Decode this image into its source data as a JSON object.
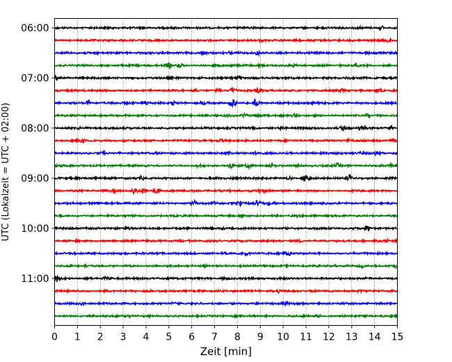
{
  "chart_data": {
    "type": "line",
    "title": "",
    "xlabel": "Zeit  [min]",
    "ylabel": "UTC (Lokalzeit = UTC + 02:00)",
    "xlim": [
      0,
      15
    ],
    "xticks": [
      0,
      1,
      2,
      3,
      4,
      5,
      6,
      7,
      8,
      9,
      10,
      11,
      12,
      13,
      14,
      15
    ],
    "row_interval_minutes": 15,
    "start_time": "06:00",
    "ytick_labels": [
      "06:00",
      "07:00",
      "08:00",
      "09:00",
      "10:00",
      "11:00"
    ],
    "grid": "x",
    "trace_colors": [
      "#000000",
      "#ff0000",
      "#0000ff",
      "#008000"
    ],
    "rows": [
      {
        "time": "06:00",
        "events": [
          [
            8.8,
            0.4
          ],
          [
            12.2,
            0.5
          ],
          [
            13.3,
            0.4
          ],
          [
            14.3,
            0.6
          ]
        ]
      },
      {
        "time": "06:15",
        "events": [
          [
            9.0,
            0.4
          ],
          [
            14.6,
            0.8
          ]
        ]
      },
      {
        "time": "06:30",
        "events": [
          [
            1.8,
            0.6
          ],
          [
            4.2,
            0.4
          ],
          [
            6.5,
            0.7
          ],
          [
            7.7,
            0.5
          ],
          [
            8.9,
            0.8
          ],
          [
            13.7,
            0.4
          ]
        ]
      },
      {
        "time": "06:45",
        "events": [
          [
            5.0,
            1.0
          ],
          [
            5.5,
            0.7
          ],
          [
            9.0,
            0.6
          ],
          [
            10.5,
            0.5
          ],
          [
            13.2,
            0.4
          ]
        ]
      },
      {
        "time": "07:00",
        "events": [
          [
            0.1,
            1.0
          ],
          [
            7.9,
            0.4
          ],
          [
            8.1,
            0.5
          ],
          [
            12.8,
            0.4
          ]
        ]
      },
      {
        "time": "07:15",
        "events": [
          [
            6.2,
            0.7
          ],
          [
            7.2,
            0.8
          ],
          [
            7.8,
            1.2
          ],
          [
            8.9,
            1.0
          ],
          [
            12.5,
            0.4
          ],
          [
            14.2,
            0.9
          ]
        ]
      },
      {
        "time": "07:30",
        "events": [
          [
            1.5,
            0.9
          ],
          [
            3.2,
            0.4
          ],
          [
            4.0,
            0.8
          ],
          [
            5.2,
            0.8
          ],
          [
            6.5,
            0.7
          ],
          [
            7.8,
            1.8
          ],
          [
            8.8,
            2.2
          ]
        ]
      },
      {
        "time": "07:45",
        "events": [
          [
            7.6,
            0.6
          ],
          [
            8.3,
            0.7
          ],
          [
            8.9,
            0.6
          ],
          [
            10.5,
            0.4
          ],
          [
            13.7,
            0.5
          ]
        ]
      },
      {
        "time": "08:00",
        "events": [
          [
            1.0,
            0.5
          ],
          [
            9.9,
            0.4
          ],
          [
            12.6,
            1.0
          ],
          [
            13.5,
            0.9
          ],
          [
            14.7,
            0.8
          ]
        ]
      },
      {
        "time": "08:15",
        "events": [
          [
            1.2,
            1.0
          ],
          [
            1.8,
            0.6
          ],
          [
            7.3,
            0.5
          ],
          [
            12.9,
            0.5
          ],
          [
            14.8,
            0.7
          ]
        ]
      },
      {
        "time": "08:30",
        "events": [
          [
            2.1,
            0.5
          ],
          [
            7.6,
            0.5
          ],
          [
            8.9,
            0.6
          ],
          [
            13.4,
            0.4
          ],
          [
            14.1,
            0.7
          ]
        ]
      },
      {
        "time": "08:45",
        "events": [
          [
            6.3,
            0.7
          ],
          [
            7.7,
            1.1
          ],
          [
            8.5,
            1.0
          ],
          [
            9.5,
            0.9
          ],
          [
            10.6,
            0.6
          ],
          [
            12.4,
            0.8
          ],
          [
            14.7,
            0.5
          ]
        ]
      },
      {
        "time": "09:00",
        "events": [
          [
            3.8,
            0.6
          ],
          [
            8.9,
            0.4
          ],
          [
            10.3,
            0.5
          ],
          [
            11.0,
            2.0
          ],
          [
            12.9,
            1.4
          ]
        ]
      },
      {
        "time": "09:15",
        "events": [
          [
            2.6,
            0.8
          ],
          [
            3.5,
            1.5
          ],
          [
            3.9,
            1.3
          ],
          [
            4.5,
            1.1
          ],
          [
            9.1,
            0.9
          ]
        ]
      },
      {
        "time": "09:30",
        "events": [
          [
            6.1,
            1.0
          ],
          [
            7.0,
            0.5
          ],
          [
            8.1,
            0.8
          ],
          [
            8.9,
            1.3
          ],
          [
            9.4,
            0.5
          ]
        ]
      },
      {
        "time": "09:45",
        "events": [
          [
            8.2,
            0.4
          ],
          [
            10.6,
            0.3
          ]
        ]
      },
      {
        "time": "10:00",
        "events": [
          [
            3.2,
            0.4
          ],
          [
            7.4,
            0.3
          ],
          [
            13.7,
            1.3
          ]
        ]
      },
      {
        "time": "10:15",
        "events": [
          [
            5.9,
            0.3
          ],
          [
            10.8,
            0.3
          ],
          [
            14.5,
            0.5
          ]
        ]
      },
      {
        "time": "10:30",
        "events": [
          [
            3.9,
            0.3
          ],
          [
            8.4,
            0.5
          ],
          [
            10.2,
            0.6
          ]
        ]
      },
      {
        "time": "10:45",
        "events": [
          [
            6.6,
            0.3
          ],
          [
            13.5,
            0.5
          ],
          [
            14.9,
            0.7
          ]
        ]
      },
      {
        "time": "11:00",
        "events": [
          [
            0.1,
            1.2
          ],
          [
            2.2,
            0.4
          ],
          [
            7.4,
            0.3
          ],
          [
            13.6,
            0.4
          ]
        ]
      },
      {
        "time": "11:15",
        "events": [
          [
            4.1,
            0.3
          ],
          [
            9.8,
            0.4
          ],
          [
            13.4,
            0.5
          ]
        ]
      },
      {
        "time": "11:30",
        "events": [
          [
            1.2,
            0.3
          ],
          [
            5.2,
            0.3
          ],
          [
            10.1,
            0.5
          ]
        ]
      },
      {
        "time": "11:45",
        "events": [
          [
            3.3,
            0.3
          ],
          [
            11.6,
            0.4
          ],
          [
            14.3,
            0.3
          ]
        ]
      }
    ]
  }
}
